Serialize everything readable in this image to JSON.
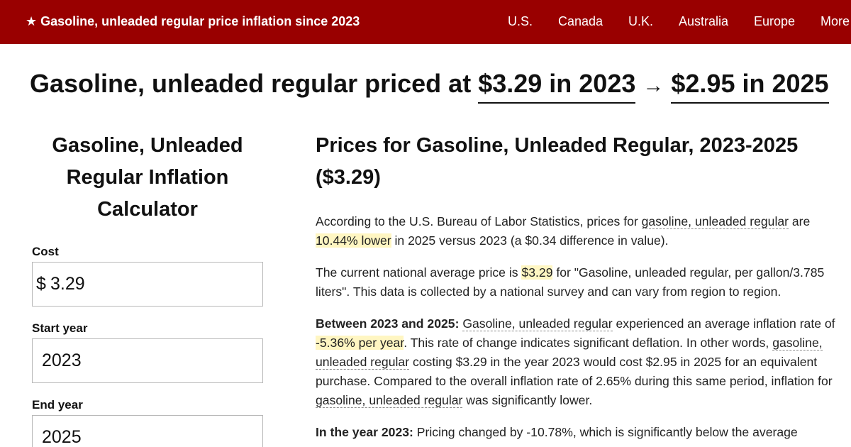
{
  "header": {
    "brand": "★ Gasoline, unleaded regular price inflation since 2023",
    "nav": [
      "U.S.",
      "Canada",
      "U.K.",
      "Australia",
      "Europe",
      "More"
    ]
  },
  "headline": {
    "prefix": "Gasoline, unleaded regular priced at",
    "start_value": "$3.29 in 2023",
    "arrow": "→",
    "end_value": "$2.95 in 2025"
  },
  "calculator": {
    "title": "Gasoline, Unleaded Regular Inflation Calculator",
    "cost_label": "Cost",
    "cost_prefix": "$",
    "cost_value": "3.29",
    "start_label": "Start year",
    "start_value": "2023",
    "end_label": "End year",
    "end_value": "2025"
  },
  "article": {
    "title": "Prices for Gasoline, Unleaded Regular, 2023-2025 ($3.29)",
    "p1": {
      "a": "According to the U.S. Bureau of Labor Statistics, prices for ",
      "link": "gasoline, unleaded regular",
      "b": " are ",
      "hl": "10.44% lower",
      "c": " in 2025 versus 2023 (a $0.34 difference in value)."
    },
    "p2": {
      "a": "The current national average price is ",
      "hl": "$3.29",
      "b": " for \"Gasoline, unleaded regular, per gallon/3.785 liters\". This data is collected by a national survey and can vary from region to region."
    },
    "p3": {
      "lead": "Between 2023 and 2025:",
      "link1": "Gasoline, unleaded regular",
      "a": " experienced an average inflation rate of ",
      "hl": "-5.36% per year",
      "b": ". This rate of change indicates significant deflation. In other words, ",
      "link2": "gasoline, unleaded regular",
      "c": " costing $3.29 in the year 2023 would cost $2.95 in 2025 for an equivalent purchase. Compared to the overall inflation rate of 2.65% during this same period, inflation for ",
      "link3": "gasoline, unleaded regular",
      "d": " was significantly lower."
    },
    "p4": {
      "lead": "In the year 2023:",
      "a": " Pricing changed by -10.78%, which is significantly below the average"
    }
  }
}
